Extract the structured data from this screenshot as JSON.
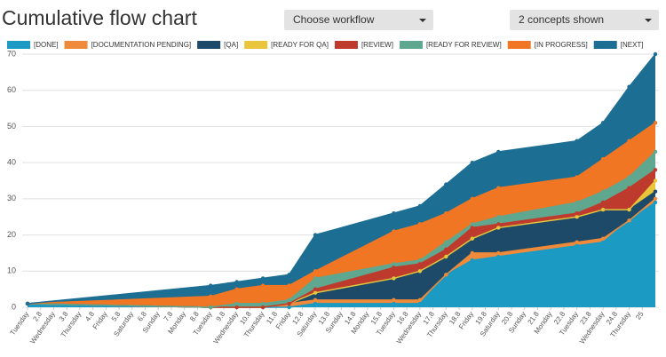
{
  "header": {
    "title": "Cumulative flow chart"
  },
  "controls": [
    "Choose workflow",
    "2 concepts shown"
  ],
  "chart_data": {
    "type": "area",
    "stacked": true,
    "grid": true,
    "x": [
      1,
      8,
      9,
      10,
      11,
      12,
      15,
      16,
      17,
      18,
      19,
      22,
      23,
      24,
      25
    ],
    "xlim": [
      1,
      25
    ],
    "xticks": [
      {
        "value": 1,
        "label": "Tuesday"
      },
      {
        "value": 1.5,
        "label": "2.8"
      },
      {
        "value": 2,
        "label": "Wednesday"
      },
      {
        "value": 2.5,
        "label": "3.8"
      },
      {
        "value": 3,
        "label": "Thursday"
      },
      {
        "value": 3.5,
        "label": "4.8"
      },
      {
        "value": 4,
        "label": "Friday"
      },
      {
        "value": 4.5,
        "label": "5.8"
      },
      {
        "value": 5,
        "label": "Saturday"
      },
      {
        "value": 5.5,
        "label": "6.8"
      },
      {
        "value": 6,
        "label": "Sunday"
      },
      {
        "value": 6.5,
        "label": "7.8"
      },
      {
        "value": 7,
        "label": "Monday"
      },
      {
        "value": 7.5,
        "label": "8.8"
      },
      {
        "value": 8,
        "label": "Tuesday"
      },
      {
        "value": 8.5,
        "label": "9.8"
      },
      {
        "value": 9,
        "label": "Wednesday"
      },
      {
        "value": 9.5,
        "label": "10.8"
      },
      {
        "value": 10,
        "label": "Thursday"
      },
      {
        "value": 10.5,
        "label": "11.8"
      },
      {
        "value": 11,
        "label": "Friday"
      },
      {
        "value": 11.5,
        "label": "12.8"
      },
      {
        "value": 12,
        "label": "Saturday"
      },
      {
        "value": 12.5,
        "label": "13.8"
      },
      {
        "value": 13,
        "label": "Sunday"
      },
      {
        "value": 13.5,
        "label": "14.8"
      },
      {
        "value": 14,
        "label": "Monday"
      },
      {
        "value": 14.5,
        "label": "15.8"
      },
      {
        "value": 15,
        "label": "Tuesday"
      },
      {
        "value": 15.5,
        "label": "16.8"
      },
      {
        "value": 16,
        "label": "Wednesday"
      },
      {
        "value": 16.5,
        "label": "17.8"
      },
      {
        "value": 17,
        "label": "Thursday"
      },
      {
        "value": 17.5,
        "label": "18.8"
      },
      {
        "value": 18,
        "label": "Friday"
      },
      {
        "value": 18.5,
        "label": "19.8"
      },
      {
        "value": 19,
        "label": "Saturday"
      },
      {
        "value": 19.5,
        "label": "20.8"
      },
      {
        "value": 20,
        "label": "Sunday"
      },
      {
        "value": 20.5,
        "label": "21.8"
      },
      {
        "value": 21,
        "label": "Monday"
      },
      {
        "value": 21.5,
        "label": "22.8"
      },
      {
        "value": 22,
        "label": "Tuesday"
      },
      {
        "value": 22.5,
        "label": "23.8"
      },
      {
        "value": 23,
        "label": "Wednesday"
      },
      {
        "value": 23.5,
        "label": "24.8"
      },
      {
        "value": 24,
        "label": "Thursday"
      },
      {
        "value": 24.5,
        "label": "25"
      }
    ],
    "ylim": [
      0,
      70
    ],
    "yticks": [
      0,
      10,
      20,
      30,
      40,
      50,
      60,
      70
    ],
    "series": [
      {
        "name": "[DONE]",
        "color": "#1b9ac3",
        "values": [
          1,
          0,
          0,
          0,
          0,
          1,
          1,
          1,
          9,
          13,
          14,
          17,
          18,
          24,
          29
        ]
      },
      {
        "name": "[DOCUMENTATION PENDING]",
        "color": "#ee8a3a",
        "values": [
          0,
          0,
          0,
          0,
          1,
          1,
          1,
          1,
          0,
          2,
          1,
          1,
          1,
          0,
          1
        ]
      },
      {
        "name": "[QA]",
        "color": "#1d4a68",
        "values": [
          0,
          0,
          0,
          0,
          0,
          2,
          6,
          8,
          5,
          4,
          7,
          7,
          8,
          3,
          2
        ]
      },
      {
        "name": "[READY FOR QA]",
        "color": "#e9c53b",
        "values": [
          0,
          0,
          0,
          0,
          0,
          0,
          0,
          0,
          0,
          0,
          0,
          0,
          0,
          0,
          3
        ]
      },
      {
        "name": "[REVIEW]",
        "color": "#be3a2c",
        "values": [
          0,
          0,
          0,
          0,
          0,
          1,
          3,
          2,
          2,
          3,
          1,
          1,
          2,
          6,
          3
        ]
      },
      {
        "name": "[READY FOR REVIEW]",
        "color": "#5fa78e",
        "values": [
          0,
          0,
          1,
          1,
          1,
          3,
          1,
          1,
          2,
          1,
          2,
          3,
          3,
          3,
          5
        ]
      },
      {
        "name": "[IN PROGRESS]",
        "color": "#f07624",
        "values": [
          0,
          3,
          4,
          5,
          4,
          2,
          9,
          10,
          8,
          7,
          8,
          7,
          9,
          10,
          8
        ]
      },
      {
        "name": "[NEXT]",
        "color": "#1c6e93",
        "values": [
          0,
          3,
          2,
          2,
          3,
          10,
          5,
          5,
          8,
          10,
          10,
          10,
          10,
          15,
          19
        ]
      }
    ]
  }
}
